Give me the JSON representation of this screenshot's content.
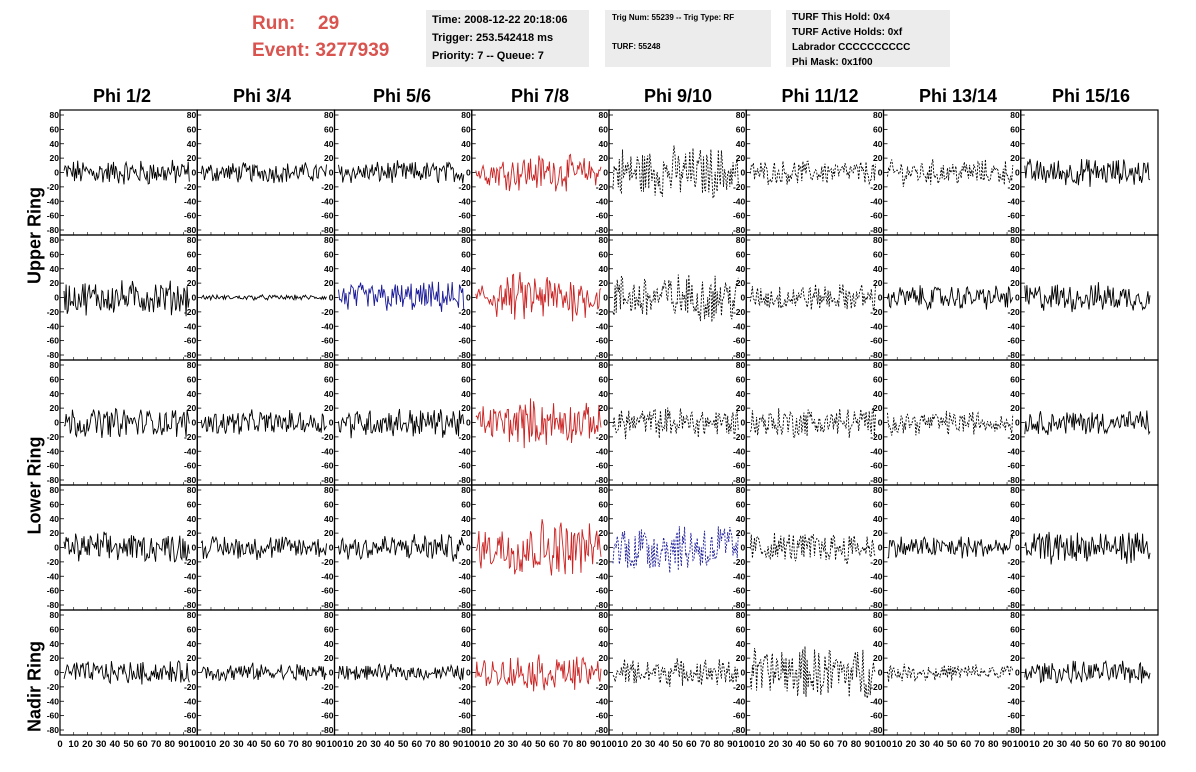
{
  "header": {
    "run_label": "Run:",
    "run_value": "29",
    "event_label": "Event:",
    "event_value": "3277939",
    "time": "Time: 2008-12-22 20:18:06",
    "trigger": "Trigger: 253.542418 ms",
    "priority": "Priority: 7 -- Queue: 7",
    "trig_num": "Trig Num: 55239 -- Trig Type: RF",
    "turf": "TURF: 55248",
    "turf_this_hold": "TURF This Hold: 0x4",
    "turf_active_holds": "TURF Active Holds: 0xf",
    "labrador": "Labrador CCCCCCCCCC",
    "phi_mask": "Phi Mask: 0x1f00"
  },
  "phi_headers": [
    "Phi 1/2",
    "Phi 3/4",
    "Phi 5/6",
    "Phi 7/8",
    "Phi 9/10",
    "Phi 11/12",
    "Phi 13/14",
    "Phi 15/16"
  ],
  "ring_labels": [
    "Upper Ring",
    "Lower Ring",
    "Nadir Ring"
  ],
  "colors": {
    "normal": "#000000",
    "red": "#cc2222",
    "blue": "#1a1a9a",
    "run_text": "#d9534f"
  },
  "chart_data": {
    "type": "line",
    "rows": 5,
    "columns": 8,
    "x_range": [
      0,
      100
    ],
    "y_range": [
      -80,
      80
    ],
    "y_ticks": [
      -80,
      -60,
      -40,
      -20,
      0,
      20,
      40,
      60,
      80
    ],
    "x_tick_labels": [
      "0",
      "10",
      "20",
      "30",
      "40",
      "50",
      "60",
      "70",
      "80",
      "90",
      "100"
    ],
    "panels": [
      [
        {
          "amp": 15,
          "color": "normal",
          "style": "solid"
        },
        {
          "amp": 12,
          "color": "normal",
          "style": "solid"
        },
        {
          "amp": 13,
          "color": "normal",
          "style": "solid"
        },
        {
          "amp": 22,
          "color": "red",
          "style": "solid"
        },
        {
          "amp": 30,
          "color": "normal",
          "style": "dashed"
        },
        {
          "amp": 14,
          "color": "normal",
          "style": "dashed"
        },
        {
          "amp": 15,
          "color": "normal",
          "style": "dashed"
        },
        {
          "amp": 16,
          "color": "normal",
          "style": "solid"
        }
      ],
      [
        {
          "amp": 20,
          "color": "normal",
          "style": "solid"
        },
        {
          "amp": 3,
          "color": "normal",
          "style": "solid"
        },
        {
          "amp": 18,
          "color": "blue",
          "style": "solid"
        },
        {
          "amp": 30,
          "color": "red",
          "style": "solid"
        },
        {
          "amp": 28,
          "color": "normal",
          "style": "dashed"
        },
        {
          "amp": 16,
          "color": "normal",
          "style": "dashed"
        },
        {
          "amp": 14,
          "color": "normal",
          "style": "solid"
        },
        {
          "amp": 17,
          "color": "normal",
          "style": "solid"
        }
      ],
      [
        {
          "amp": 17,
          "color": "normal",
          "style": "solid"
        },
        {
          "amp": 14,
          "color": "normal",
          "style": "solid"
        },
        {
          "amp": 17,
          "color": "normal",
          "style": "solid"
        },
        {
          "amp": 28,
          "color": "red",
          "style": "solid"
        },
        {
          "amp": 18,
          "color": "normal",
          "style": "dashed"
        },
        {
          "amp": 18,
          "color": "normal",
          "style": "dashed"
        },
        {
          "amp": 14,
          "color": "normal",
          "style": "dashed"
        },
        {
          "amp": 14,
          "color": "normal",
          "style": "solid"
        }
      ],
      [
        {
          "amp": 17,
          "color": "normal",
          "style": "solid"
        },
        {
          "amp": 14,
          "color": "normal",
          "style": "solid"
        },
        {
          "amp": 16,
          "color": "normal",
          "style": "solid"
        },
        {
          "amp": 35,
          "color": "red",
          "style": "solid"
        },
        {
          "amp": 30,
          "color": "blue",
          "style": "dashed"
        },
        {
          "amp": 18,
          "color": "normal",
          "style": "dashed"
        },
        {
          "amp": 14,
          "color": "normal",
          "style": "solid"
        },
        {
          "amp": 19,
          "color": "normal",
          "style": "solid"
        }
      ],
      [
        {
          "amp": 13,
          "color": "normal",
          "style": "solid"
        },
        {
          "amp": 11,
          "color": "normal",
          "style": "solid"
        },
        {
          "amp": 9,
          "color": "normal",
          "style": "solid"
        },
        {
          "amp": 22,
          "color": "red",
          "style": "solid"
        },
        {
          "amp": 16,
          "color": "normal",
          "style": "dashed"
        },
        {
          "amp": 30,
          "color": "normal",
          "style": "dashed"
        },
        {
          "amp": 10,
          "color": "normal",
          "style": "dashed"
        },
        {
          "amp": 13,
          "color": "normal",
          "style": "solid"
        }
      ]
    ]
  }
}
